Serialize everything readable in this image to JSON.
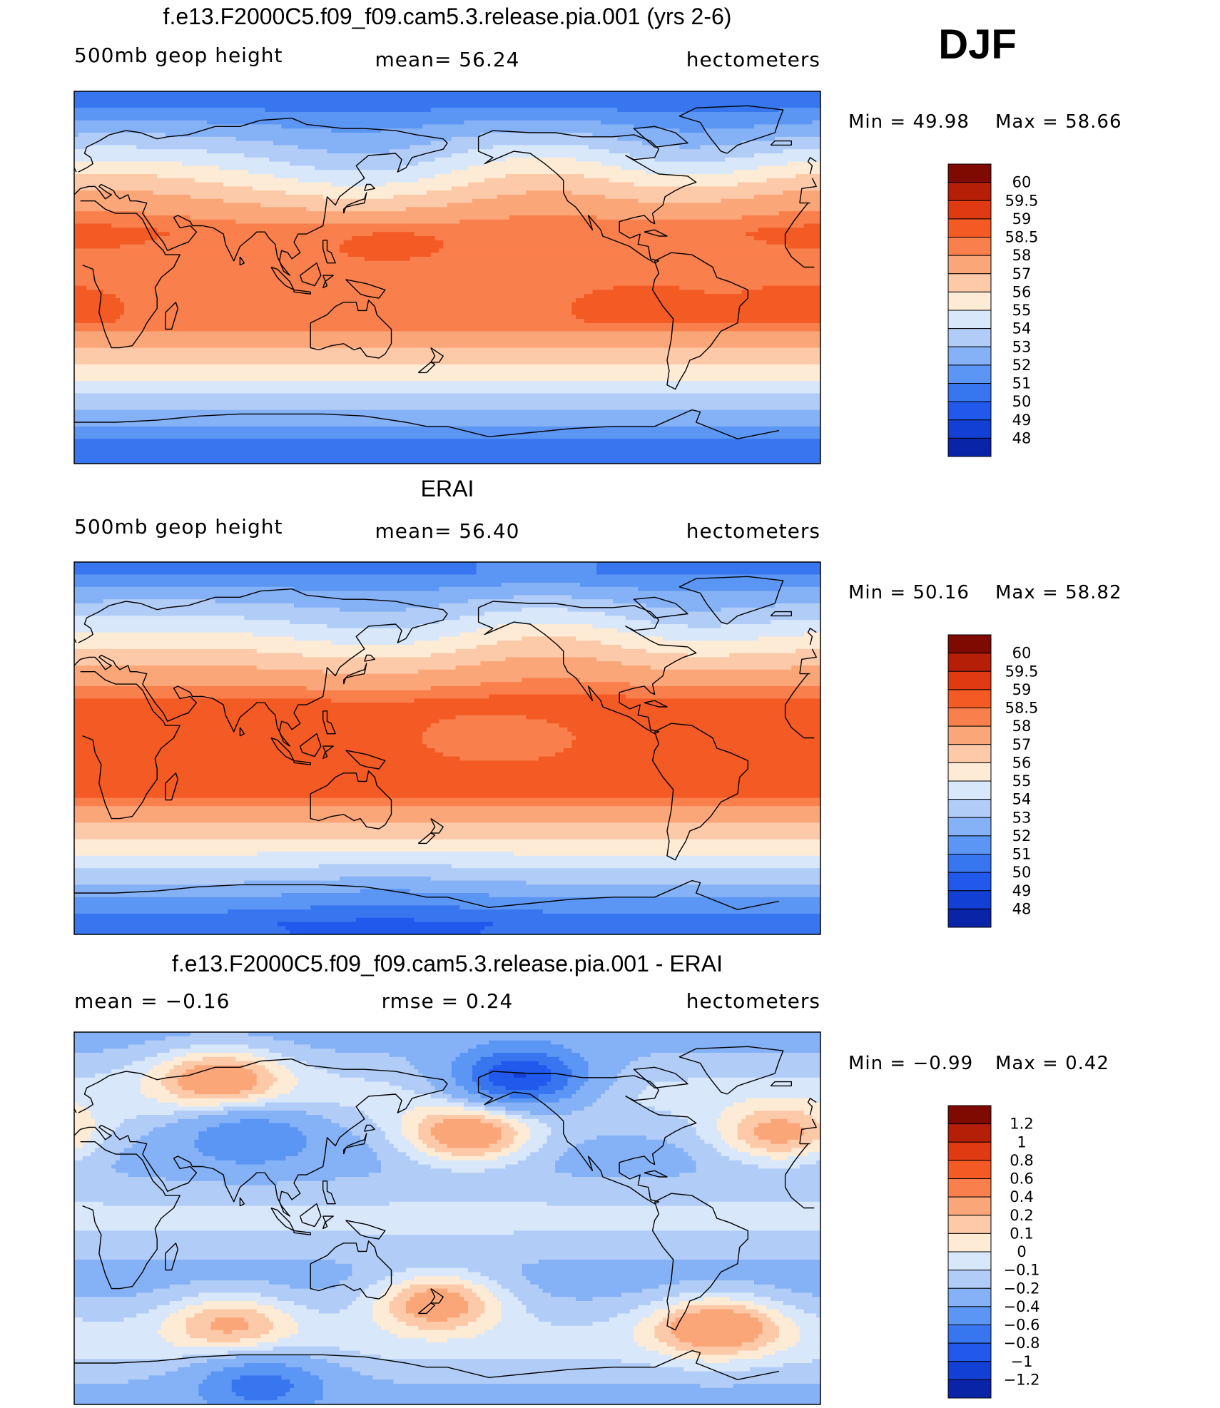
{
  "season": "DJF",
  "colors": {
    "absolute_scale": [
      "#000080",
      "#0a24a8",
      "#1240d4",
      "#2159ed",
      "#3876f0",
      "#5b96f4",
      "#85b1f6",
      "#b1cdf7",
      "#d8e7fa",
      "#fdebd6",
      "#fcc9a9",
      "#fba678",
      "#f97f4c",
      "#f35a24",
      "#df3a12",
      "#b51f08",
      "#7e0a02"
    ],
    "difference_scale": [
      "#000080",
      "#0a24a8",
      "#1240d4",
      "#2159ed",
      "#3876f0",
      "#5b96f4",
      "#85b1f6",
      "#b1cdf7",
      "#d8e7fa",
      "#fdebd6",
      "#fcc9a9",
      "#fba678",
      "#f97f4c",
      "#f35a24",
      "#df3a12",
      "#b51f08",
      "#7e0a02"
    ],
    "coastline": "#000000",
    "map_border": "#000000"
  },
  "panels": [
    {
      "id": "model",
      "title": "f.e13.F2000C5.f09_f09.cam5.3.release.pia.001 (yrs 2-6)",
      "variable_label": "500mb  geop  height",
      "stat_label": "mean=   56.24",
      "units_label": "hectometers",
      "min_label": "Min  =    49.98",
      "max_label": "Max  =    58.66",
      "scale": "absolute",
      "colorbar_labels": [
        "60",
        "59.5",
        "59",
        "58.5",
        "58",
        "57",
        "56",
        "55",
        "54",
        "53",
        "52",
        "51",
        "50",
        "49",
        "48"
      ],
      "field": {
        "type": "geopotential",
        "south_pole": 50.0,
        "north_pole": 50.5,
        "tropics": 58.4,
        "features": [
          {
            "name": "north pacific trough",
            "lon": 140,
            "lat": 52,
            "amplitude": -1.4
          },
          {
            "name": "north atlantic trough",
            "lon": -70,
            "lat": 58,
            "amplitude": -1.2
          },
          {
            "name": "canada ridge",
            "lon": -125,
            "lat": 55,
            "amplitude": 1.0
          },
          {
            "name": "europe ridge",
            "lon": 0,
            "lat": 45,
            "amplitude": 0.7
          },
          {
            "name": "western pacific high",
            "lon": 150,
            "lat": 18,
            "amplitude": 0.35
          },
          {
            "name": "south american high",
            "lon": -85,
            "lat": -15,
            "amplitude": 0.35
          },
          {
            "name": "south atlantic high",
            "lon": -10,
            "lat": -15,
            "amplitude": 0.35
          }
        ]
      }
    },
    {
      "id": "obs",
      "title": "ERAI",
      "variable_label": "500mb  geop  height",
      "stat_label": "mean=   56.40",
      "units_label": "hectometers",
      "min_label": "Min  =   50.16",
      "max_label": "Max  =    58.82",
      "scale": "absolute",
      "colorbar_labels": [
        "60",
        "59.5",
        "59",
        "58.5",
        "58",
        "57",
        "56",
        "55",
        "54",
        "53",
        "52",
        "51",
        "50",
        "49",
        "48"
      ],
      "field": {
        "type": "geopotential",
        "south_pole": 50.2,
        "north_pole": 51.0,
        "tropics": 58.65,
        "features": [
          {
            "name": "north pacific trough",
            "lon": 150,
            "lat": 55,
            "amplitude": -1.0
          },
          {
            "name": "north atlantic trough",
            "lon": -70,
            "lat": 58,
            "amplitude": -1.0
          },
          {
            "name": "canada ridge",
            "lon": -125,
            "lat": 55,
            "amplitude": 1.0
          },
          {
            "name": "central pacific dip",
            "lon": -155,
            "lat": 5,
            "amplitude": -0.6
          },
          {
            "name": "southern ocean low",
            "lon": 150,
            "lat": -75,
            "amplitude": -0.6
          }
        ]
      }
    },
    {
      "id": "diff",
      "title": "f.e13.F2000C5.f09_f09.cam5.3.release.pia.001 - ERAI",
      "variable_label": "mean  =   −0.16",
      "stat_label": "rmse  =    0.24",
      "units_label": "hectometers",
      "min_label": "Min  =   −0.99",
      "max_label": "Max  =     0.42",
      "scale": "difference",
      "colorbar_labels": [
        "1.2",
        "1",
        "0.8",
        "0.6",
        "0.4",
        "0.2",
        "0.1",
        "0",
        "−0.1",
        "−0.2",
        "−0.4",
        "−0.6",
        "−0.8",
        "−1",
        "−1.2"
      ],
      "field": {
        "type": "difference",
        "background": -0.16,
        "features": [
          {
            "name": "north pacific positive",
            "lon": -170,
            "lat": 40,
            "amplitude": 0.55
          },
          {
            "name": "alaska negative",
            "lon": -145,
            "lat": 68,
            "amplitude": -0.9
          },
          {
            "name": "siberia positive",
            "lon": 70,
            "lat": 68,
            "amplitude": 0.45
          },
          {
            "name": "atlantic positive",
            "lon": -20,
            "lat": 40,
            "amplitude": 0.45
          },
          {
            "name": "new zealand positive",
            "lon": 175,
            "lat": -40,
            "amplitude": 0.5
          },
          {
            "name": "south atlantic positive",
            "lon": -50,
            "lat": -52,
            "amplitude": 0.5
          },
          {
            "name": "indian ocean positive",
            "lon": 75,
            "lat": -50,
            "amplitude": 0.35
          },
          {
            "name": "central asia negative",
            "lon": 85,
            "lat": 40,
            "amplitude": -0.4
          },
          {
            "name": "antarctic negative",
            "lon": 90,
            "lat": -80,
            "amplitude": -0.5
          }
        ]
      }
    }
  ]
}
